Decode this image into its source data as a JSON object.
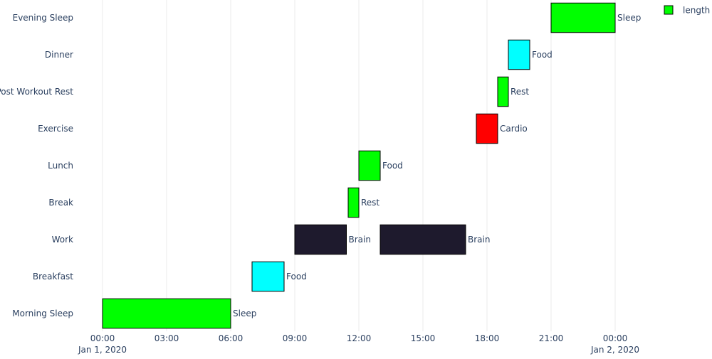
{
  "chart_data": {
    "type": "bar",
    "orientation": "horizontal-timeline",
    "title": "",
    "xlabel": "",
    "ylabel": "",
    "grid": {
      "x": true,
      "y": false
    },
    "legend": {
      "placement": "top-right",
      "entries": [
        {
          "label": "length",
          "color": "#00ff00"
        }
      ]
    },
    "x_axis": {
      "range": [
        "2020-01-01 00:00",
        "2020-01-02 01:00"
      ],
      "ticks": [
        {
          "time": "2020-01-01 00:00",
          "label": "00:00",
          "sublabel": "Jan 1, 2020"
        },
        {
          "time": "2020-01-01 03:00",
          "label": "03:00",
          "sublabel": ""
        },
        {
          "time": "2020-01-01 06:00",
          "label": "06:00",
          "sublabel": ""
        },
        {
          "time": "2020-01-01 09:00",
          "label": "09:00",
          "sublabel": ""
        },
        {
          "time": "2020-01-01 12:00",
          "label": "12:00",
          "sublabel": ""
        },
        {
          "time": "2020-01-01 15:00",
          "label": "15:00",
          "sublabel": ""
        },
        {
          "time": "2020-01-01 18:00",
          "label": "18:00",
          "sublabel": ""
        },
        {
          "time": "2020-01-01 21:00",
          "label": "21:00",
          "sublabel": ""
        },
        {
          "time": "2020-01-02 00:00",
          "label": "00:00",
          "sublabel": "Jan 2, 2020"
        }
      ]
    },
    "categories": [
      "Morning Sleep",
      "Breakfast",
      "Work",
      "Break",
      "Lunch",
      "Exercise",
      "Post Workout Rest",
      "Dinner",
      "Evening Sleep"
    ],
    "tasks": [
      {
        "task": "Morning Sleep",
        "start": "2020-01-01 00:00",
        "finish": "2020-01-01 06:00",
        "label": "Sleep",
        "color": "#00ff00"
      },
      {
        "task": "Breakfast",
        "start": "2020-01-01 07:00",
        "finish": "2020-01-01 08:30",
        "label": "Food",
        "color": "#00ffff"
      },
      {
        "task": "Work",
        "start": "2020-01-01 09:00",
        "finish": "2020-01-01 11:25",
        "label": "Brain",
        "color": "#1e1a2d"
      },
      {
        "task": "Break",
        "start": "2020-01-01 11:30",
        "finish": "2020-01-01 12:00",
        "label": "Rest",
        "color": "#00ff00"
      },
      {
        "task": "Lunch",
        "start": "2020-01-01 12:00",
        "finish": "2020-01-01 13:00",
        "label": "Food",
        "color": "#00ff00"
      },
      {
        "task": "Work",
        "start": "2020-01-01 13:00",
        "finish": "2020-01-01 17:00",
        "label": "Brain",
        "color": "#1e1a2d"
      },
      {
        "task": "Exercise",
        "start": "2020-01-01 17:30",
        "finish": "2020-01-01 18:30",
        "label": "Cardio",
        "color": "#ff0000"
      },
      {
        "task": "Post Workout Rest",
        "start": "2020-01-01 18:30",
        "finish": "2020-01-01 19:00",
        "label": "Rest",
        "color": "#00ff00"
      },
      {
        "task": "Dinner",
        "start": "2020-01-01 19:00",
        "finish": "2020-01-01 20:00",
        "label": "Food",
        "color": "#00ffff"
      },
      {
        "task": "Evening Sleep",
        "start": "2020-01-01 21:00",
        "finish": "2020-01-02 00:00",
        "label": "Sleep",
        "color": "#00ff00"
      }
    ]
  }
}
